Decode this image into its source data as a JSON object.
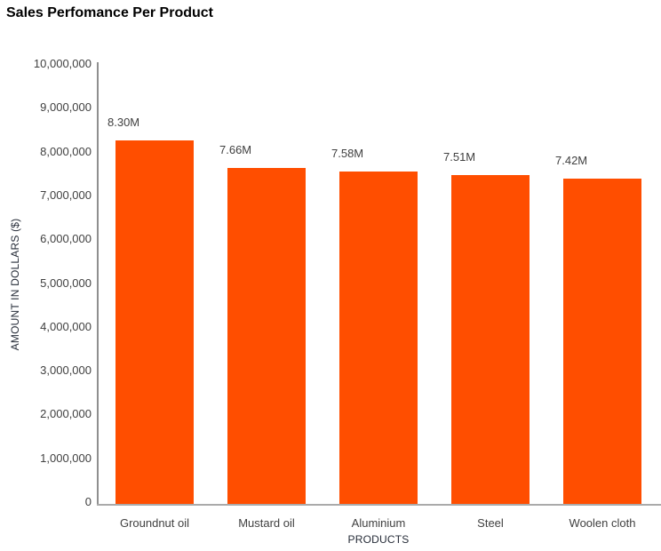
{
  "chart_data": {
    "type": "bar",
    "title": "Sales Perfomance Per Product",
    "xlabel": "PRODUCTS",
    "ylabel": "AMOUNT IN DOLLARS ($)",
    "categories": [
      "Groundnut oil",
      "Mustard oil",
      "Aluminium",
      "Steel",
      "Woolen cloth"
    ],
    "values": [
      8300000,
      7660000,
      7580000,
      7510000,
      7420000
    ],
    "value_labels": [
      "8.30M",
      "7.66M",
      "7.58M",
      "7.51M",
      "7.42M"
    ],
    "ylim": [
      0,
      10000000
    ],
    "y_ticks": [
      {
        "value": 0,
        "label": "0"
      },
      {
        "value": 1000000,
        "label": "1,000,000"
      },
      {
        "value": 2000000,
        "label": "2,000,000"
      },
      {
        "value": 3000000,
        "label": "3,000,000"
      },
      {
        "value": 4000000,
        "label": "4,000,000"
      },
      {
        "value": 5000000,
        "label": "5,000,000"
      },
      {
        "value": 6000000,
        "label": "6,000,000"
      },
      {
        "value": 7000000,
        "label": "7,000,000"
      },
      {
        "value": 8000000,
        "label": "8,000,000"
      },
      {
        "value": 9000000,
        "label": "9,000,000"
      },
      {
        "value": 10000000,
        "label": "10,000,000"
      }
    ],
    "grid": false,
    "legend": false
  },
  "colors": {
    "bar": "#FF4E00",
    "title": "#000000",
    "axis_title": "#262c38",
    "tick_label": "#404040",
    "value_label": "#404040",
    "category_label": "#404040",
    "y_axis_line": "#8f8f8f",
    "x_axis_line": "#aaaaaa",
    "background": "#ffffff"
  }
}
